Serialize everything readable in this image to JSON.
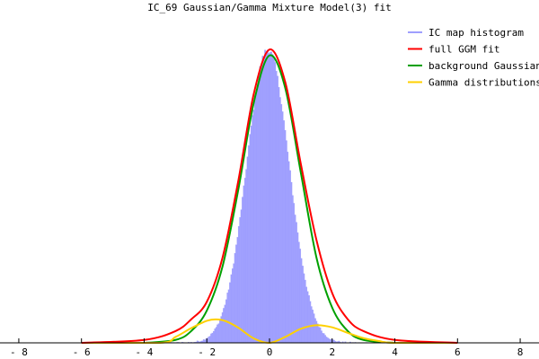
{
  "chart_data": {
    "type": "area",
    "title": "IC_69 Gaussian/Gamma Mixture Model(3) fit",
    "xlabel": "",
    "ylabel": "",
    "xlim": [
      -8.6,
      8.6
    ],
    "ylim": [
      0,
      1.12
    ],
    "x_ticks": [
      -8,
      -6,
      -4,
      -2,
      0,
      2,
      4,
      6,
      8
    ],
    "x_tick_labels": [
      "- 8",
      "- 6",
      "- 4",
      "- 2",
      "0",
      "2",
      "4",
      "6",
      "8"
    ],
    "grid": false,
    "legend_position": "top-right",
    "series": [
      {
        "name": "IC map histogram",
        "color": "#9f9ffe",
        "kind": "histogram",
        "bin_width": 0.04,
        "x_range": [
          -4.6,
          4.6
        ],
        "model": {
          "mu": -0.05,
          "sigma": 0.68,
          "noise_amplitude": 0.012
        }
      },
      {
        "name": "full GGM fit",
        "color": "#ff0000",
        "kind": "line",
        "x": [
          -6,
          -4,
          -3,
          -2.5,
          -2,
          -1.5,
          -1,
          -0.5,
          0,
          0.5,
          1,
          1.5,
          2,
          2.5,
          3,
          4,
          6
        ],
        "y": [
          0.0,
          0.01,
          0.04,
          0.08,
          0.14,
          0.29,
          0.55,
          0.85,
          1.0,
          0.89,
          0.61,
          0.35,
          0.17,
          0.08,
          0.04,
          0.01,
          0.0
        ]
      },
      {
        "name": "background Gaussian",
        "color": "#00a000",
        "kind": "line",
        "x": [
          -5,
          -4,
          -3,
          -2.5,
          -2,
          -1.5,
          -1,
          -0.5,
          0,
          0.5,
          1,
          1.5,
          2,
          2.5,
          3,
          4,
          5
        ],
        "y": [
          0.0,
          0.0,
          0.01,
          0.04,
          0.11,
          0.26,
          0.52,
          0.82,
          0.98,
          0.87,
          0.58,
          0.29,
          0.12,
          0.04,
          0.01,
          0.0,
          0.0
        ]
      },
      {
        "name": "Gamma distributions",
        "color": "#ffd000",
        "kind": "line",
        "x": [
          -6,
          -3.5,
          -3,
          -2.5,
          -2,
          -1.7,
          -1.4,
          -1,
          -0.5,
          0,
          0.5,
          1,
          1.5,
          2,
          2.5,
          3,
          3.5,
          4,
          6
        ],
        "y": [
          0.0,
          0.0,
          0.02,
          0.05,
          0.075,
          0.08,
          0.074,
          0.052,
          0.015,
          0.0,
          0.02,
          0.048,
          0.06,
          0.053,
          0.034,
          0.016,
          0.006,
          0.0,
          0.0
        ]
      }
    ]
  }
}
